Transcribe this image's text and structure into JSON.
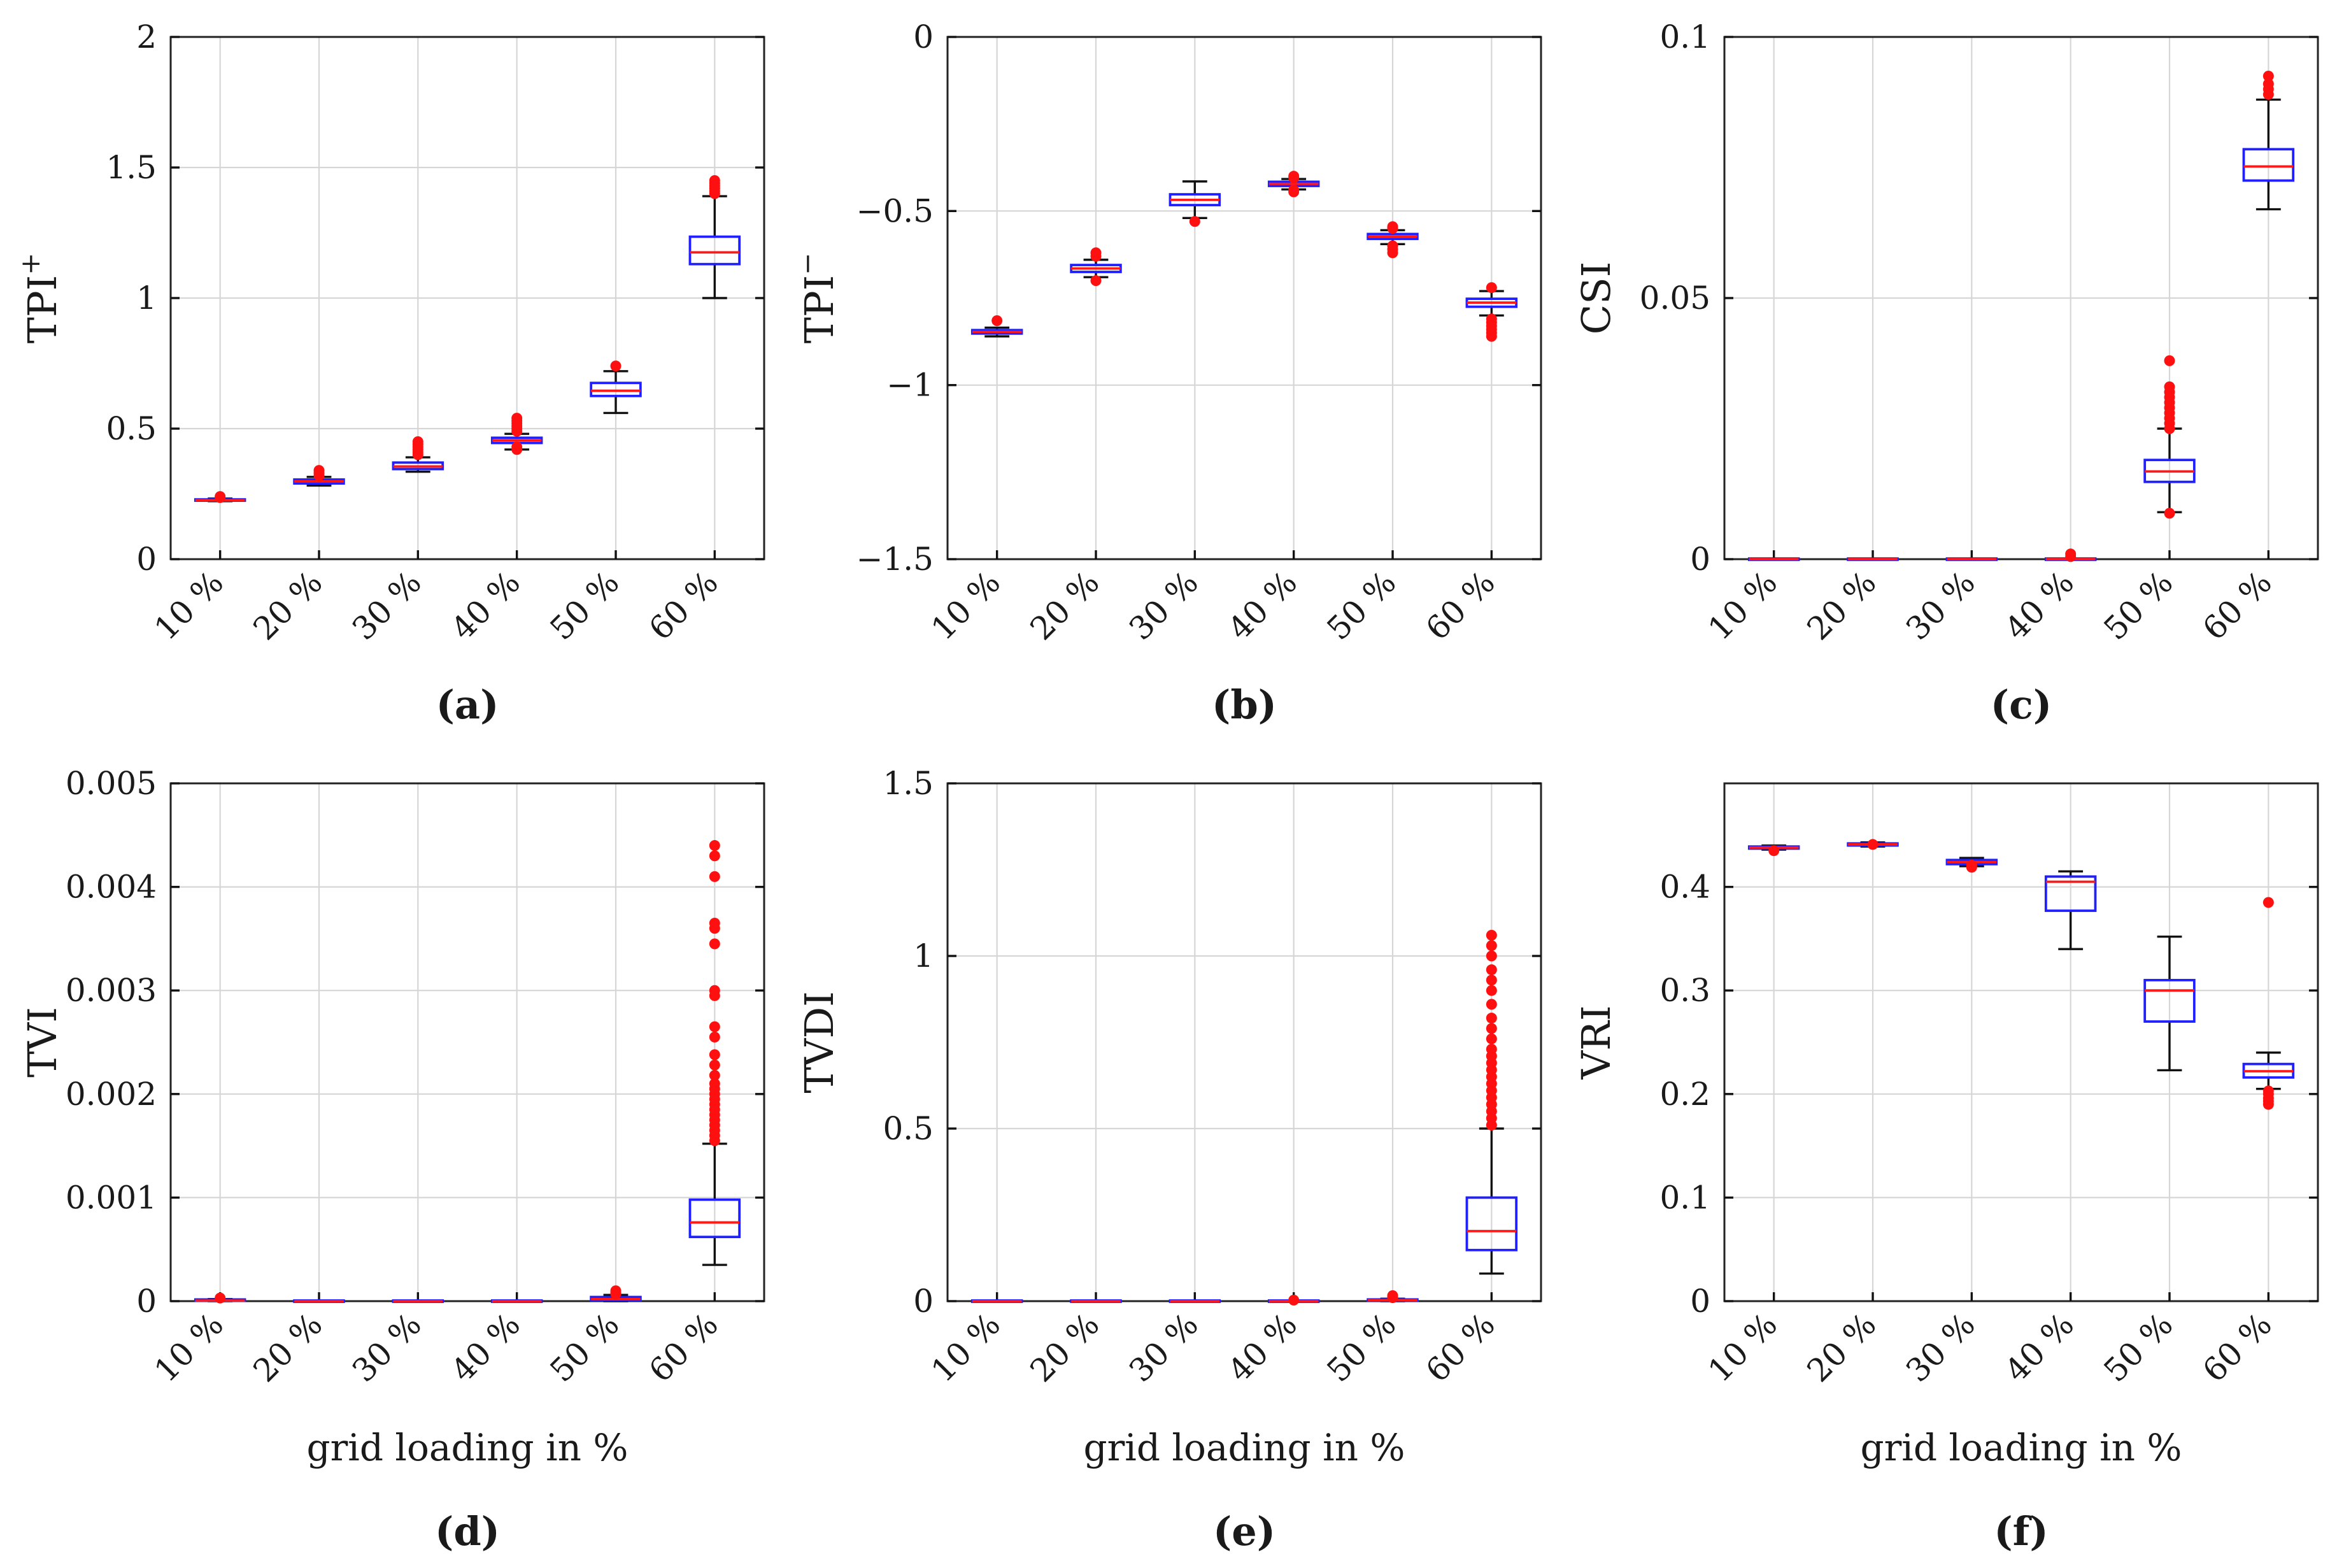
{
  "chart_data": [
    {
      "panel_label": "(a)",
      "type": "box",
      "ylabel": "TPI",
      "ylabel_sup": "+",
      "xlabel": "",
      "ylim": [
        0,
        2
      ],
      "yticks": [
        0,
        0.5,
        1,
        1.5,
        2
      ],
      "ytick_labels": [
        "0",
        "0.5",
        "1",
        "1.5",
        "2"
      ],
      "categories": [
        "10 %",
        "20 %",
        "30 %",
        "40 %",
        "50 %",
        "60 %"
      ],
      "grid": true,
      "boxes": [
        {
          "min": 0.222,
          "q1": 0.224,
          "median": 0.226,
          "q3": 0.229,
          "max": 0.232,
          "outliers": [
            0.236,
            0.24
          ]
        },
        {
          "min": 0.282,
          "q1": 0.29,
          "median": 0.298,
          "q3": 0.305,
          "max": 0.315,
          "outliers": [
            0.32,
            0.33,
            0.34
          ]
        },
        {
          "min": 0.335,
          "q1": 0.345,
          "median": 0.355,
          "q3": 0.37,
          "max": 0.39,
          "outliers": [
            0.4,
            0.41,
            0.42,
            0.43,
            0.44,
            0.45
          ]
        },
        {
          "min": 0.42,
          "q1": 0.445,
          "median": 0.455,
          "q3": 0.465,
          "max": 0.48,
          "outliers": [
            0.42,
            0.43,
            0.49,
            0.5,
            0.51,
            0.52,
            0.53,
            0.54
          ]
        },
        {
          "min": 0.56,
          "q1": 0.625,
          "median": 0.645,
          "q3": 0.675,
          "max": 0.72,
          "outliers": [
            0.74
          ]
        },
        {
          "min": 1.0,
          "q1": 1.13,
          "median": 1.175,
          "q3": 1.235,
          "max": 1.39,
          "outliers": [
            1.4,
            1.41,
            1.42,
            1.43,
            1.44,
            1.45
          ]
        }
      ]
    },
    {
      "panel_label": "(b)",
      "type": "box",
      "ylabel": "TPI",
      "ylabel_sup": "−",
      "xlabel": "",
      "ylim": [
        -1.5,
        0
      ],
      "yticks": [
        -1.5,
        -1,
        -0.5,
        0
      ],
      "ytick_labels": [
        "−1.5",
        "−1",
        "−0.5",
        "0"
      ],
      "categories": [
        "10 %",
        "20 %",
        "30 %",
        "40 %",
        "50 %",
        "60 %"
      ],
      "grid": true,
      "boxes": [
        {
          "min": -0.86,
          "q1": -0.852,
          "median": -0.847,
          "q3": -0.842,
          "max": -0.835,
          "outliers": [
            -0.815
          ]
        },
        {
          "min": -0.69,
          "q1": -0.675,
          "median": -0.665,
          "q3": -0.655,
          "max": -0.64,
          "outliers": [
            -0.62,
            -0.63,
            -0.7
          ]
        },
        {
          "min": -0.52,
          "q1": -0.483,
          "median": -0.468,
          "q3": -0.452,
          "max": -0.415,
          "outliers": [
            -0.53
          ]
        },
        {
          "min": -0.438,
          "q1": -0.428,
          "median": -0.422,
          "q3": -0.416,
          "max": -0.408,
          "outliers": [
            -0.4,
            -0.405,
            -0.44,
            -0.445
          ]
        },
        {
          "min": -0.595,
          "q1": -0.58,
          "median": -0.573,
          "q3": -0.566,
          "max": -0.555,
          "outliers": [
            -0.545,
            -0.55,
            -0.6,
            -0.61,
            -0.62
          ]
        },
        {
          "min": -0.8,
          "q1": -0.775,
          "median": -0.763,
          "q3": -0.752,
          "max": -0.73,
          "outliers": [
            -0.72,
            -0.81,
            -0.82,
            -0.83,
            -0.84,
            -0.85,
            -0.86
          ]
        }
      ]
    },
    {
      "panel_label": "(c)",
      "type": "box",
      "ylabel": "CSI",
      "ylabel_sup": "",
      "xlabel": "",
      "ylim": [
        0,
        0.1
      ],
      "yticks": [
        0,
        0.05,
        0.1
      ],
      "ytick_labels": [
        "0",
        "0.05",
        "0.1"
      ],
      "categories": [
        "10 %",
        "20 %",
        "30 %",
        "40 %",
        "50 %",
        "60 %"
      ],
      "grid": true,
      "boxes": [
        {
          "min": 0,
          "q1": 0,
          "median": 0,
          "q3": 0,
          "max": 0,
          "outliers": []
        },
        {
          "min": 0,
          "q1": 0,
          "median": 0,
          "q3": 0,
          "max": 0,
          "outliers": []
        },
        {
          "min": 0,
          "q1": 0,
          "median": 0,
          "q3": 0,
          "max": 0,
          "outliers": []
        },
        {
          "min": 0,
          "q1": 0,
          "median": 0,
          "q3": 0,
          "max": 0,
          "outliers": [
            0.0005,
            0.001
          ]
        },
        {
          "min": 0.009,
          "q1": 0.0148,
          "median": 0.0168,
          "q3": 0.019,
          "max": 0.025,
          "outliers": [
            0.0088,
            0.025,
            0.026,
            0.027,
            0.028,
            0.029,
            0.03,
            0.031,
            0.032,
            0.033,
            0.038
          ]
        },
        {
          "min": 0.067,
          "q1": 0.0725,
          "median": 0.0752,
          "q3": 0.0785,
          "max": 0.088,
          "outliers": [
            0.089,
            0.09,
            0.091,
            0.0925
          ]
        }
      ]
    },
    {
      "panel_label": "(d)",
      "type": "box",
      "ylabel": "TVI",
      "ylabel_sup": "",
      "xlabel": "grid loading in %",
      "ylim": [
        0,
        0.005
      ],
      "yticks": [
        0,
        0.001,
        0.002,
        0.003,
        0.004,
        0.005
      ],
      "ytick_labels": [
        "0",
        "0.001",
        "0.002",
        "0.003",
        "0.004",
        "0.005"
      ],
      "categories": [
        "10 %",
        "20 %",
        "30 %",
        "40 %",
        "50 %",
        "60 %"
      ],
      "grid": true,
      "boxes": [
        {
          "min": 0,
          "q1": 0,
          "median": 5e-06,
          "q3": 1e-05,
          "max": 2e-05,
          "outliers": [
            3e-05
          ]
        },
        {
          "min": 0,
          "q1": 0,
          "median": 0,
          "q3": 0,
          "max": 0,
          "outliers": []
        },
        {
          "min": 0,
          "q1": 0,
          "median": 0,
          "q3": 0,
          "max": 0,
          "outliers": []
        },
        {
          "min": 0,
          "q1": 0,
          "median": 0,
          "q3": 0,
          "max": 0,
          "outliers": []
        },
        {
          "min": 0,
          "q1": 1e-05,
          "median": 2e-05,
          "q3": 4e-05,
          "max": 6e-05,
          "outliers": [
            7e-05,
            8e-05,
            0.0001
          ]
        },
        {
          "min": 0.00035,
          "q1": 0.00062,
          "median": 0.00076,
          "q3": 0.00098,
          "max": 0.00152,
          "outliers": [
            0.00155,
            0.0016,
            0.00165,
            0.0017,
            0.00175,
            0.0018,
            0.00185,
            0.0019,
            0.00195,
            0.002,
            0.00205,
            0.0021,
            0.00218,
            0.00228,
            0.00238,
            0.00255,
            0.00265,
            0.00295,
            0.003,
            0.00345,
            0.0036,
            0.00365,
            0.0041,
            0.0043,
            0.0044
          ]
        }
      ]
    },
    {
      "panel_label": "(e)",
      "type": "box",
      "ylabel": "TVDI",
      "ylabel_sup": "",
      "xlabel": "grid loading in %",
      "ylim": [
        0,
        1.5
      ],
      "yticks": [
        0,
        0.5,
        1,
        1.5
      ],
      "ytick_labels": [
        "0",
        "0.5",
        "1",
        "1.5"
      ],
      "categories": [
        "10 %",
        "20 %",
        "30 %",
        "40 %",
        "50 %",
        "60 %"
      ],
      "grid": true,
      "boxes": [
        {
          "min": 0,
          "q1": 0,
          "median": 0,
          "q3": 0,
          "max": 0,
          "outliers": []
        },
        {
          "min": 0,
          "q1": 0,
          "median": 0,
          "q3": 0,
          "max": 0,
          "outliers": []
        },
        {
          "min": 0,
          "q1": 0,
          "median": 0,
          "q3": 0,
          "max": 0,
          "outliers": []
        },
        {
          "min": 0,
          "q1": 0,
          "median": 0,
          "q3": 0,
          "max": 0,
          "outliers": [
            0.003
          ]
        },
        {
          "min": 0,
          "q1": 0.001,
          "median": 0.003,
          "q3": 0.005,
          "max": 0.007,
          "outliers": [
            0.01,
            0.013,
            0.016
          ]
        },
        {
          "min": 0.08,
          "q1": 0.148,
          "median": 0.203,
          "q3": 0.3,
          "max": 0.5,
          "outliers": [
            0.51,
            0.53,
            0.55,
            0.57,
            0.59,
            0.61,
            0.63,
            0.65,
            0.67,
            0.69,
            0.71,
            0.73,
            0.76,
            0.79,
            0.82,
            0.86,
            0.9,
            0.93,
            0.96,
            1.0,
            1.03,
            1.06
          ]
        }
      ]
    },
    {
      "panel_label": "(f)",
      "type": "box",
      "ylabel": "VRI",
      "ylabel_sup": "",
      "xlabel": "grid loading in %",
      "ylim": [
        0,
        0.5
      ],
      "yticks": [
        0,
        0.1,
        0.2,
        0.3,
        0.4
      ],
      "ytick_labels": [
        "0",
        "0.1",
        "0.2",
        "0.3",
        "0.4"
      ],
      "categories": [
        "10 %",
        "20 %",
        "30 %",
        "40 %",
        "50 %",
        "60 %"
      ],
      "grid": true,
      "boxes": [
        {
          "min": 0.436,
          "q1": 0.437,
          "median": 0.438,
          "q3": 0.439,
          "max": 0.44,
          "outliers": [
            0.435
          ]
        },
        {
          "min": 0.439,
          "q1": 0.44,
          "median": 0.441,
          "q3": 0.442,
          "max": 0.443,
          "outliers": [
            0.441
          ]
        },
        {
          "min": 0.42,
          "q1": 0.422,
          "median": 0.424,
          "q3": 0.426,
          "max": 0.428,
          "outliers": [
            0.419,
            0.421
          ]
        },
        {
          "min": 0.34,
          "q1": 0.377,
          "median": 0.405,
          "q3": 0.41,
          "max": 0.415,
          "outliers": []
        },
        {
          "min": 0.223,
          "q1": 0.27,
          "median": 0.3,
          "q3": 0.31,
          "max": 0.352,
          "outliers": []
        },
        {
          "min": 0.205,
          "q1": 0.216,
          "median": 0.222,
          "q3": 0.229,
          "max": 0.24,
          "outliers": [
            0.19,
            0.193,
            0.196,
            0.2,
            0.203,
            0.385
          ]
        }
      ]
    }
  ]
}
